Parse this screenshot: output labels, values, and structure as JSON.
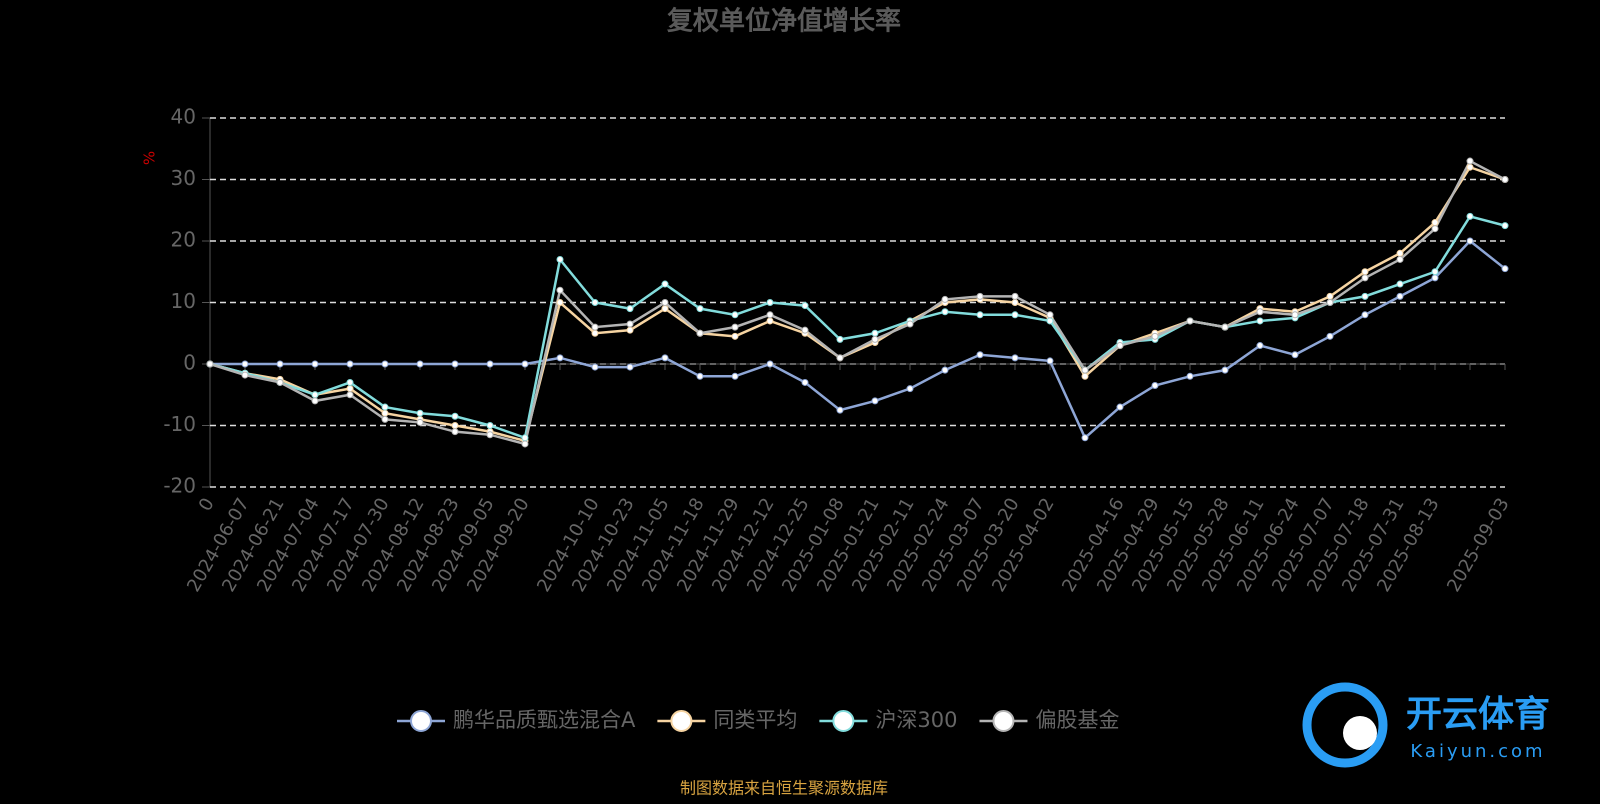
{
  "chart_data": {
    "type": "line",
    "title": "复权单位净值增长率",
    "y_label": "%",
    "source": "制图数据来自恒生聚源数据库",
    "watermark": {
      "brand": "开云体育",
      "url": "Kaiyun.com"
    },
    "categories": [
      "0",
      "2024-06-07",
      "2024-06-21",
      "2024-07-04",
      "2024-07-17",
      "2024-07-30",
      "2024-08-12",
      "2024-08-23",
      "2024-09-05",
      "2024-09-20",
      null,
      "2024-10-10",
      "2024-10-23",
      "2024-11-05",
      "2024-11-18",
      "2024-11-29",
      "2024-12-12",
      "2024-12-25",
      "2025-01-08",
      "2025-01-21",
      "2025-02-11",
      "2025-02-24",
      "2025-03-07",
      "2025-03-20",
      "2025-04-02",
      null,
      "2025-04-16",
      "2025-04-29",
      "2025-05-15",
      "2025-05-28",
      "2025-06-11",
      "2025-06-24",
      "2025-07-07",
      "2025-07-18",
      "2025-07-31",
      "2025-08-13",
      null,
      "2025-09-03"
    ],
    "series": [
      {
        "name": "鹏华品质甄选混合A",
        "color": "#8ea6d6",
        "values": [
          0,
          0,
          0,
          0,
          0,
          0,
          0,
          0,
          0,
          0,
          1,
          -0.5,
          -0.5,
          1,
          -2,
          -2,
          0,
          -3,
          -7.5,
          -6,
          -4,
          -1,
          1.5,
          1,
          0.5,
          -12,
          -7,
          -3.5,
          -2,
          -1,
          3,
          1.5,
          4.5,
          8,
          11,
          14,
          20,
          15.5
        ]
      },
      {
        "name": "同类平均",
        "color": "#f6d4a2",
        "values": [
          0,
          -1.5,
          -2.5,
          -5,
          -4,
          -8,
          -9,
          -10,
          -11,
          -12.5,
          10,
          5,
          5.5,
          9,
          5,
          4.5,
          7,
          5,
          1,
          3.5,
          7,
          10,
          10.5,
          10,
          7.5,
          -2,
          3,
          5,
          7,
          6,
          9,
          8.5,
          11,
          15,
          18,
          23,
          32,
          30
        ]
      },
      {
        "name": "沪深300",
        "color": "#82dcdc",
        "values": [
          0,
          -1.5,
          -3,
          -5,
          -3,
          -7,
          -8,
          -8.5,
          -10,
          -12,
          17,
          10,
          9,
          13,
          9,
          8,
          10,
          9.5,
          4,
          5,
          7,
          8.5,
          8,
          8,
          7,
          -1,
          3.5,
          4,
          7,
          6,
          7,
          7.5,
          10,
          11,
          13,
          15,
          24,
          22.5
        ]
      },
      {
        "name": "偏股基金",
        "color": "#b4b4b4",
        "values": [
          0,
          -1.8,
          -3,
          -6,
          -5,
          -9,
          -9.5,
          -11,
          -11.5,
          -13,
          12,
          6,
          6.5,
          10,
          5,
          6,
          8,
          5.5,
          1,
          4,
          6.5,
          10.5,
          11,
          11,
          8,
          -1,
          3,
          4.5,
          7,
          6,
          8.5,
          8,
          10,
          14,
          17,
          22,
          33,
          30
        ]
      }
    ],
    "ylim": [
      -20,
      40
    ],
    "yticks": [
      -20,
      -10,
      0,
      10,
      20,
      30,
      40
    ],
    "grid": true
  }
}
